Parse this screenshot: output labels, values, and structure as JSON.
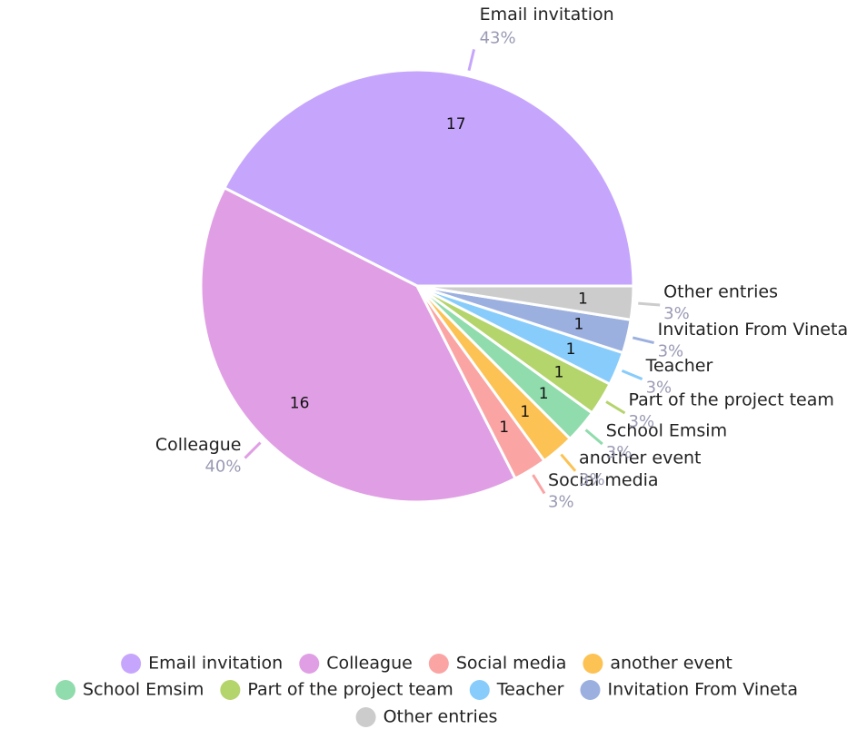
{
  "chart_data": {
    "type": "pie",
    "categories": [
      "Email invitation",
      "Colleague",
      "Social media",
      "another event",
      "School Emsim",
      "Part of the project team",
      "Teacher",
      "Invitation From Vineta",
      "Other entries"
    ],
    "values": [
      17,
      16,
      1,
      1,
      1,
      1,
      1,
      1,
      1
    ],
    "percent_labels": [
      "43%",
      "40%",
      "3%",
      "3%",
      "3%",
      "3%",
      "3%",
      "3%",
      "3%"
    ],
    "colors": [
      "#c6a6fc",
      "#e09fe4",
      "#fba4a4",
      "#fcc254",
      "#90dcac",
      "#b4d46c",
      "#88ccfc",
      "#9cb0e0",
      "#cccccc"
    ],
    "legend": "bottom"
  }
}
